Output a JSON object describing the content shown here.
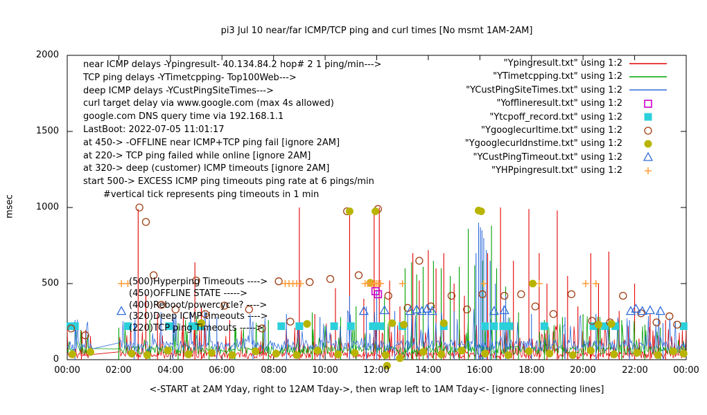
{
  "chart_data": {
    "type": "line",
    "title": "pi3 Jul 10  near/far ICMP/TCP ping and curl times [No msmt 1AM-2AM]",
    "ylabel": "msec",
    "xlabel": "<-START at 2AM Yday, right to 12AM Tday->, then wrap left to 1AM Tday<- [ignore connecting lines]",
    "ylim": [
      0,
      2000
    ],
    "xlim_hours": [
      0,
      24
    ],
    "yticks": [
      "0",
      "500",
      "1000",
      "1500",
      "2000"
    ],
    "xticks": [
      "00:00",
      "02:00",
      "04:00",
      "06:00",
      "08:00",
      "10:00",
      "12:00",
      "14:00",
      "16:00",
      "18:00",
      "20:00",
      "22:00",
      "00:00"
    ],
    "no_msmt_gap": [
      1,
      2
    ],
    "legend_position": "top-right",
    "grid": false,
    "series": [
      {
        "name": "Ypingresult",
        "legend": "\"Ypingresult.txt\" using 1:2",
        "color": "#e10000",
        "style": "impulse-line",
        "noise": {
          "seed": 7,
          "step": 0.03,
          "base": 8,
          "jitter": 45,
          "burst_p": 0.18,
          "burst_amp": 200
        },
        "spikes": [
          [
            0.55,
            190
          ],
          [
            2.75,
            990
          ],
          [
            3.05,
            430
          ],
          [
            3.5,
            300
          ],
          [
            4.5,
            280
          ],
          [
            4.95,
            640
          ],
          [
            5.2,
            350
          ],
          [
            6.3,
            260
          ],
          [
            7.6,
            230
          ],
          [
            9.0,
            1000
          ],
          [
            9.6,
            300
          ],
          [
            10.4,
            470
          ],
          [
            10.95,
            980
          ],
          [
            11.5,
            400
          ],
          [
            11.9,
            990
          ],
          [
            12.1,
            1000
          ],
          [
            12.5,
            520
          ],
          [
            12.9,
            350
          ],
          [
            13.4,
            700
          ],
          [
            13.65,
            520
          ],
          [
            14.0,
            720
          ],
          [
            14.3,
            600
          ],
          [
            14.6,
            700
          ],
          [
            15.0,
            500
          ],
          [
            15.4,
            420
          ],
          [
            16.3,
            700
          ],
          [
            16.8,
            1000
          ],
          [
            17.3,
            650
          ],
          [
            17.9,
            990
          ],
          [
            18.3,
            700
          ],
          [
            18.6,
            500
          ],
          [
            19.0,
            980
          ],
          [
            19.4,
            550
          ],
          [
            19.8,
            350
          ],
          [
            20.3,
            700
          ],
          [
            20.6,
            500
          ],
          [
            21.0,
            710
          ],
          [
            21.4,
            320
          ],
          [
            22.0,
            500
          ],
          [
            22.6,
            300
          ],
          [
            23.2,
            260
          ]
        ]
      },
      {
        "name": "YTimetcpping",
        "legend": "\"YTimetcpping.txt\" using 1:2",
        "color": "#00a000",
        "style": "impulse-line",
        "noise": {
          "seed": 13,
          "step": 0.033,
          "base": 35,
          "jitter": 55,
          "burst_p": 0.15,
          "burst_amp": 230
        },
        "spikes": [
          [
            2.0,
            210
          ],
          [
            3.2,
            260
          ],
          [
            4.3,
            240
          ],
          [
            5.5,
            220
          ],
          [
            6.5,
            210
          ],
          [
            7.8,
            260
          ],
          [
            9.5,
            310
          ],
          [
            10.6,
            280
          ],
          [
            11.2,
            350
          ],
          [
            12.3,
            410
          ],
          [
            13.1,
            600
          ],
          [
            13.35,
            640
          ],
          [
            13.55,
            560
          ],
          [
            13.8,
            610
          ],
          [
            14.2,
            650
          ],
          [
            14.5,
            600
          ],
          [
            14.85,
            550
          ],
          [
            15.2,
            610
          ],
          [
            15.55,
            860
          ],
          [
            15.8,
            620
          ],
          [
            16.1,
            650
          ],
          [
            16.45,
            880
          ],
          [
            16.65,
            600
          ],
          [
            17.0,
            480
          ],
          [
            17.5,
            310
          ],
          [
            18.5,
            260
          ],
          [
            19.2,
            280
          ],
          [
            20.0,
            300
          ],
          [
            21.5,
            260
          ],
          [
            22.4,
            230
          ],
          [
            23.0,
            210
          ]
        ]
      },
      {
        "name": "YCustPingSiteTimes",
        "legend": "\"YCustPingSiteTimes.txt\" using 1:2",
        "color": "#2e6bdb",
        "style": "impulse-line",
        "noise": {
          "seed": 21,
          "step": 0.036,
          "base": 55,
          "jitter": 75,
          "burst_p": 0.15,
          "burst_amp": 260
        },
        "spikes": [
          [
            0.3,
            260
          ],
          [
            2.6,
            240
          ],
          [
            4.1,
            260
          ],
          [
            5.8,
            280
          ],
          [
            7.2,
            250
          ],
          [
            8.5,
            300
          ],
          [
            9.8,
            280
          ],
          [
            10.95,
            420
          ],
          [
            11.6,
            350
          ],
          [
            12.0,
            460
          ],
          [
            12.7,
            320
          ],
          [
            13.2,
            300
          ],
          [
            14.0,
            360
          ],
          [
            15.0,
            320
          ],
          [
            15.85,
            700
          ],
          [
            15.95,
            900
          ],
          [
            16.02,
            870
          ],
          [
            16.08,
            850
          ],
          [
            16.15,
            800
          ],
          [
            16.25,
            720
          ],
          [
            16.4,
            650
          ],
          [
            16.6,
            500
          ],
          [
            17.0,
            420
          ],
          [
            18.0,
            300
          ],
          [
            19.3,
            280
          ],
          [
            20.5,
            300
          ],
          [
            21.8,
            260
          ],
          [
            23.1,
            240
          ]
        ]
      },
      {
        "name": "Yofflineresult",
        "legend": "\"Yofflineresult.txt\" using 1:2",
        "color": "#c800c8",
        "style": "square-open",
        "points": [
          [
            11.95,
            450
          ],
          [
            12.05,
            430
          ]
        ]
      },
      {
        "name": "Ytcpoff_record",
        "legend": "\"Ytcpoff_record.txt\" using 1:2",
        "color": "#2bd0da",
        "style": "square-filled",
        "points": [
          [
            0.12,
            220
          ],
          [
            0.3,
            220
          ],
          [
            2.35,
            220
          ],
          [
            3.95,
            220
          ],
          [
            4.85,
            220
          ],
          [
            5.15,
            220
          ],
          [
            8.3,
            220
          ],
          [
            9.0,
            220
          ],
          [
            10.35,
            220
          ],
          [
            11.0,
            220
          ],
          [
            11.85,
            220
          ],
          [
            12.0,
            220
          ],
          [
            12.15,
            220
          ],
          [
            13.0,
            220
          ],
          [
            14.6,
            220
          ],
          [
            16.2,
            220
          ],
          [
            16.55,
            220
          ],
          [
            16.9,
            220
          ],
          [
            17.15,
            220
          ],
          [
            18.5,
            220
          ],
          [
            20.4,
            220
          ],
          [
            20.85,
            220
          ],
          [
            21.25,
            220
          ],
          [
            23.9,
            220
          ]
        ]
      },
      {
        "name": "Ygooglecurltime",
        "legend": "\"Ygooglecurltime.txt\" using 1:2",
        "color": "#a03c10",
        "style": "circle-open",
        "points": [
          [
            0.15,
            205
          ],
          [
            0.7,
            160
          ],
          [
            2.8,
            1000
          ],
          [
            3.05,
            905
          ],
          [
            3.35,
            555
          ],
          [
            3.65,
            360
          ],
          [
            4.2,
            330
          ],
          [
            5.0,
            520
          ],
          [
            5.35,
            300
          ],
          [
            6.1,
            355
          ],
          [
            7.05,
            330
          ],
          [
            7.55,
            205
          ],
          [
            8.2,
            515
          ],
          [
            8.65,
            250
          ],
          [
            9.4,
            510
          ],
          [
            10.2,
            530
          ],
          [
            10.85,
            975
          ],
          [
            11.3,
            555
          ],
          [
            12.05,
            990
          ],
          [
            12.45,
            420
          ],
          [
            13.2,
            340
          ],
          [
            13.65,
            650
          ],
          [
            14.1,
            350
          ],
          [
            14.9,
            420
          ],
          [
            15.5,
            330
          ],
          [
            16.1,
            430
          ],
          [
            16.95,
            420
          ],
          [
            17.6,
            430
          ],
          [
            18.15,
            350
          ],
          [
            18.85,
            300
          ],
          [
            19.55,
            430
          ],
          [
            20.35,
            255
          ],
          [
            21.05,
            245
          ],
          [
            21.55,
            420
          ],
          [
            22.25,
            305
          ],
          [
            22.85,
            245
          ],
          [
            23.35,
            285
          ],
          [
            23.65,
            230
          ]
        ]
      },
      {
        "name": "Ygooglecurldnstime",
        "legend": "\"Ygooglecurldnstime.txt\" using 1:2",
        "color": "#b8b400",
        "style": "circle-filled",
        "points": [
          [
            0.2,
            35
          ],
          [
            0.9,
            50
          ],
          [
            2.5,
            40
          ],
          [
            3.1,
            30
          ],
          [
            3.9,
            60
          ],
          [
            4.7,
            35
          ],
          [
            5.2,
            240
          ],
          [
            5.6,
            45
          ],
          [
            6.4,
            30
          ],
          [
            7.3,
            55
          ],
          [
            8.1,
            40
          ],
          [
            8.9,
            30
          ],
          [
            9.3,
            235
          ],
          [
            9.7,
            60
          ],
          [
            10.5,
            35
          ],
          [
            10.95,
            975
          ],
          [
            11.15,
            45
          ],
          [
            11.75,
            505
          ],
          [
            11.95,
            975
          ],
          [
            12.35,
            30
          ],
          [
            12.4,
            -40
          ],
          [
            12.6,
            240
          ],
          [
            12.9,
            10
          ],
          [
            13.05,
            230
          ],
          [
            13.8,
            50
          ],
          [
            14.5,
            35
          ],
          [
            14.6,
            240
          ],
          [
            15.3,
            60
          ],
          [
            15.95,
            980
          ],
          [
            16.05,
            975
          ],
          [
            16.2,
            40
          ],
          [
            17.1,
            30
          ],
          [
            17.9,
            55
          ],
          [
            18.05,
            500
          ],
          [
            18.7,
            40
          ],
          [
            19.6,
            30
          ],
          [
            20.3,
            60
          ],
          [
            20.6,
            230
          ],
          [
            21.1,
            235
          ],
          [
            21.2,
            35
          ],
          [
            22.1,
            45
          ],
          [
            22.9,
            30
          ],
          [
            23.5,
            55
          ],
          [
            23.9,
            40
          ]
        ]
      },
      {
        "name": "YCustPingTimeout",
        "legend": "\"YCustPingTimeout.txt\" using 1:2",
        "color": "#2e6bdb",
        "style": "triangle-open",
        "points": [
          [
            2.1,
            320
          ],
          [
            11.5,
            320
          ],
          [
            12.3,
            325
          ],
          [
            13.3,
            320
          ],
          [
            13.55,
            330
          ],
          [
            13.75,
            320
          ],
          [
            13.95,
            335
          ],
          [
            14.15,
            320
          ],
          [
            16.55,
            320
          ],
          [
            16.95,
            325
          ],
          [
            21.85,
            320
          ],
          [
            22.05,
            335
          ],
          [
            22.3,
            320
          ],
          [
            22.6,
            325
          ],
          [
            23.0,
            320
          ]
        ]
      },
      {
        "name": "YHPpingresult",
        "legend": "\"YHPpingresult.txt\" using 1:2",
        "color": "#ffa040",
        "style": "plus",
        "points": [
          [
            2.1,
            500
          ],
          [
            2.35,
            500
          ],
          [
            8.45,
            500
          ],
          [
            8.6,
            500
          ],
          [
            8.75,
            500
          ],
          [
            8.9,
            500
          ],
          [
            9.05,
            500
          ],
          [
            11.55,
            500
          ],
          [
            11.65,
            500
          ],
          [
            11.72,
            500
          ],
          [
            11.8,
            500
          ],
          [
            11.87,
            500
          ],
          [
            11.93,
            500
          ],
          [
            12.0,
            500
          ],
          [
            12.07,
            500
          ],
          [
            12.15,
            500
          ],
          [
            13.0,
            500
          ],
          [
            16.15,
            500
          ],
          [
            18.3,
            500
          ],
          [
            20.1,
            500
          ],
          [
            20.5,
            500
          ]
        ]
      }
    ]
  },
  "annotations": {
    "top_left": [
      "near ICMP delays -Ypingresult- 40.134.84.2 hop# 2 1 ping/min--->",
      "TCP ping delays -YTimetcpping- Top100Web--->",
      "deep ICMP delays -YCustPingSiteTimes--->",
      "curl target delay via www.google.com (max 4s allowed)",
      "google.com DNS query time via 192.168.1.1",
      "LastBoot: 2022-07-05 11:01:17",
      "at 450-> -OFFLINE near ICMP+TCP ping fail [ignore 2AM]",
      "at 220-> TCP ping failed while online [ignore 2AM]",
      "at 320-> deep (customer) ICMP timeouts [ignore 2AM]",
      "start 500-> EXCESS ICMP ping timeouts ping rate at 6 pings/min",
      "       #vertical tick represents ping timeouts in 1 min"
    ],
    "mid": [
      {
        "text": "(500)Hyperping Timeouts ---->",
        "y_msec": 500
      },
      {
        "text": "(450)OFFLINE STATE ----->",
        "y_msec": 450
      },
      {
        "text": "(400)Reboot/powercycle? ---->",
        "y_msec": 400
      },
      {
        "text": "(320)Deep ICMP timeouts ---->",
        "y_msec": 320
      },
      {
        "text": "(220)TCP ping Timeouts ----->",
        "y_msec": 220
      }
    ]
  }
}
